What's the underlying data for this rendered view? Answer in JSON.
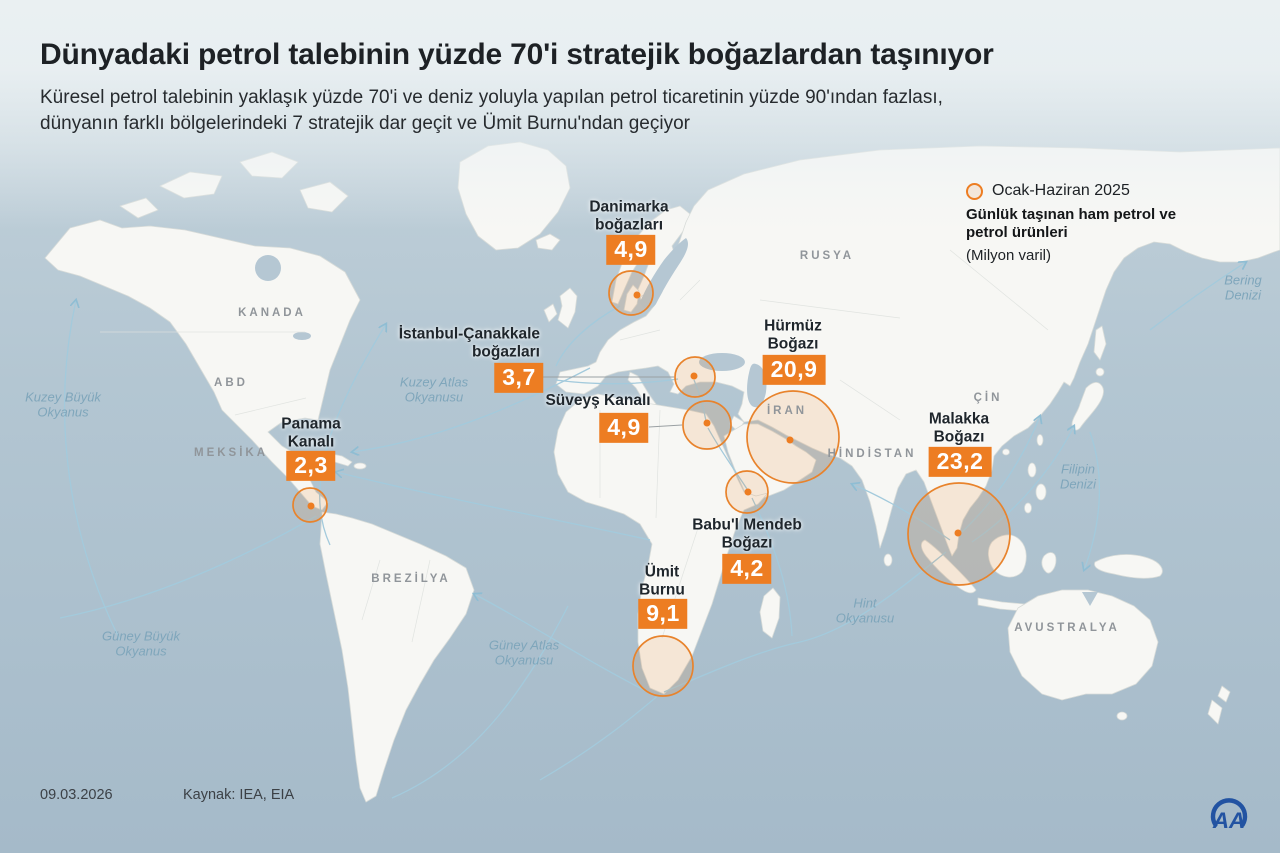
{
  "header": {
    "title": "Dünyadaki petrol talebinin yüzde 70'i stratejik boğazlardan taşınıyor",
    "subtitle_line1": "Küresel petrol talebinin yaklaşık yüzde 70'i ve deniz yoluyla yapılan petrol ticaretinin yüzde 90'ından fazlası,",
    "subtitle_line2": "dünyanın farklı bölgelerindeki 7 stratejik dar geçit ve Ümit Burnu'ndan geçiyor"
  },
  "legend": {
    "period": "Ocak-Haziran 2025",
    "metric_line1": "Günlük taşınan ham petrol ve",
    "metric_line2": "petrol ürünleri",
    "unit": "(Milyon varil)"
  },
  "chokepoints": [
    {
      "id": "danimarka",
      "name_lines": [
        "Danimarka",
        "boğazları"
      ],
      "value": "4,9"
    },
    {
      "id": "istanbul",
      "name_lines": [
        "İstanbul-Çanakkale",
        "boğazları"
      ],
      "value": "3,7"
    },
    {
      "id": "suveys",
      "name_lines": [
        "Süveyş Kanalı"
      ],
      "value": "4,9"
    },
    {
      "id": "hurmuz",
      "name_lines": [
        "Hürmüz",
        "Boğazı"
      ],
      "value": "20,9"
    },
    {
      "id": "malakka",
      "name_lines": [
        "Malakka",
        "Boğazı"
      ],
      "value": "23,2"
    },
    {
      "id": "babul",
      "name_lines": [
        "Babu'l Mendeb",
        "Boğazı"
      ],
      "value": "4,2"
    },
    {
      "id": "umit",
      "name_lines": [
        "Ümit",
        "Burnu"
      ],
      "value": "9,1"
    },
    {
      "id": "panama",
      "name_lines": [
        "Panama",
        "Kanalı"
      ],
      "value": "2,3"
    }
  ],
  "map_labels": {
    "countries": [
      {
        "id": "kanada",
        "text": "KANADA"
      },
      {
        "id": "abd",
        "text": "ABD"
      },
      {
        "id": "meksika",
        "text": "MEKSİKA"
      },
      {
        "id": "brezilya",
        "text": "BREZİLYA"
      },
      {
        "id": "rusya",
        "text": "RUSYA"
      },
      {
        "id": "iran",
        "text": "İRAN"
      },
      {
        "id": "hindistan",
        "text": "HİNDİSTAN"
      },
      {
        "id": "cin",
        "text": "ÇİN"
      },
      {
        "id": "avustralya",
        "text": "AVUSTRALYA"
      }
    ],
    "oceans": [
      {
        "id": "kuzeyBuyuk",
        "lines": [
          "Kuzey Büyük",
          "Okyanus"
        ]
      },
      {
        "id": "guneyBuyuk",
        "lines": [
          "Güney Büyük",
          "Okyanus"
        ]
      },
      {
        "id": "kuzeyAtlas",
        "lines": [
          "Kuzey Atlas",
          "Okyanusu"
        ]
      },
      {
        "id": "guneyAtlas",
        "lines": [
          "Güney Atlas",
          "Okyanusu"
        ]
      },
      {
        "id": "hint",
        "lines": [
          "Hint",
          "Okyanusu"
        ]
      },
      {
        "id": "bering",
        "lines": [
          "Bering",
          "Denizi"
        ]
      },
      {
        "id": "filipin",
        "lines": [
          "Filipin",
          "Denizi"
        ]
      }
    ]
  },
  "footer": {
    "date": "09.03.2026",
    "source": "Kaynak: IEA, EIA"
  },
  "logo": {
    "text": "AA"
  },
  "colors": {
    "accent": "#ED7D22",
    "circle_stroke": "#E8832C",
    "ocean": "#b5c7d3",
    "land": "#f7f7f4",
    "route": "#a3cadc",
    "logo_blue": "#2253a2"
  }
}
